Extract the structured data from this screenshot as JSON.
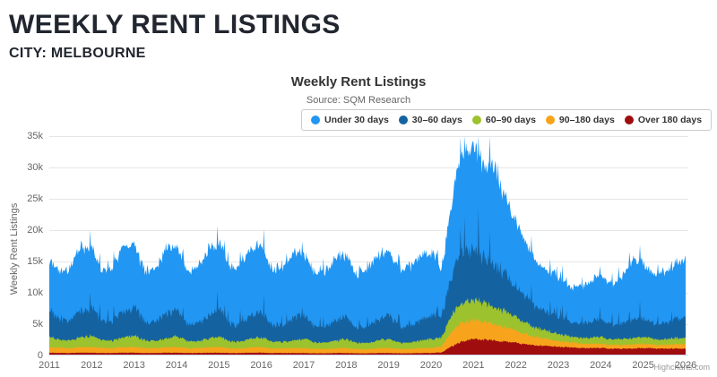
{
  "page": {
    "title": "WEEKLY RENT LISTINGS",
    "subtitle": "CITY: MELBOURNE"
  },
  "chart_data": {
    "type": "area",
    "stacking": "normal",
    "stacking_order": "reversed (Over 180 days at bottom, Under 30 days on top)",
    "title": "Weekly Rent Listings",
    "subtitle": "Source: SQM Research",
    "ylabel": "Weekly Rent Listings",
    "ylim": [
      0,
      35000
    ],
    "grid": "horizontal only",
    "legend_position": "top center, boxed",
    "credits": "Highcharts.com",
    "yticks": [
      {
        "value": 0,
        "label": "0"
      },
      {
        "value": 5000,
        "label": "5k"
      },
      {
        "value": 10000,
        "label": "10k"
      },
      {
        "value": 15000,
        "label": "15k"
      },
      {
        "value": 20000,
        "label": "20k"
      },
      {
        "value": 25000,
        "label": "25k"
      },
      {
        "value": 30000,
        "label": "30k"
      },
      {
        "value": 35000,
        "label": "35k"
      }
    ],
    "xticks": [
      "2011",
      "2012",
      "2013",
      "2014",
      "2015",
      "2016",
      "2017",
      "2018",
      "2019",
      "2020",
      "2021",
      "2022",
      "2023",
      "2024",
      "2025",
      "2026"
    ],
    "x_start": 2011,
    "x_step_years": 0.25,
    "x_end": 2026,
    "resolution_note": "weekly data 2011-2026; values below are quarterly estimates of each band (listings count)",
    "series": [
      {
        "name": "Under 30 days",
        "color": "#2196f3",
        "values": [
          8000,
          7600,
          8400,
          10000,
          9300,
          8000,
          8600,
          10500,
          10000,
          8200,
          8500,
          10300,
          10200,
          8400,
          8800,
          10800,
          10500,
          8900,
          9200,
          10800,
          10400,
          8900,
          9000,
          10600,
          9900,
          8600,
          8800,
          10200,
          9700,
          8400,
          9000,
          10600,
          10400,
          9000,
          9300,
          10400,
          10000,
          7500,
          12000,
          16000,
          16500,
          15000,
          16000,
          12000,
          10300,
          8300,
          7200,
          6600,
          6200,
          5500,
          5900,
          6500,
          6700,
          6500,
          7400,
          9700,
          8800,
          7800,
          8200,
          8800,
          9200
        ]
      },
      {
        "name": "30–60 days",
        "color": "#1562a0",
        "values": [
          4500,
          3000,
          3200,
          4200,
          4500,
          3000,
          3200,
          4000,
          4600,
          3000,
          3000,
          3800,
          4400,
          2800,
          2900,
          3800,
          4300,
          2800,
          2800,
          3600,
          4200,
          2700,
          2700,
          3400,
          3900,
          2500,
          2500,
          3200,
          3700,
          2500,
          2600,
          3300,
          3900,
          2600,
          2700,
          3300,
          3800,
          3500,
          6500,
          8000,
          8000,
          7500,
          7000,
          6000,
          5000,
          4000,
          3400,
          3000,
          2800,
          2400,
          2300,
          2600,
          2800,
          2400,
          2500,
          3000,
          2900,
          2600,
          2700,
          2900,
          3200
        ]
      },
      {
        "name": "60–90 days",
        "color": "#9cc22e",
        "values": [
          1600,
          1200,
          1200,
          1600,
          1800,
          1200,
          1200,
          1500,
          1800,
          1200,
          1100,
          1400,
          1700,
          1100,
          1100,
          1400,
          1700,
          1100,
          1100,
          1400,
          1600,
          1100,
          1000,
          1300,
          1500,
          1000,
          1000,
          1200,
          1400,
          1000,
          1000,
          1200,
          1500,
          1000,
          1000,
          1200,
          1400,
          1500,
          2800,
          3200,
          3200,
          3000,
          2800,
          2500,
          2200,
          1800,
          1500,
          1300,
          1200,
          1000,
          900,
          1000,
          1100,
          900,
          900,
          1000,
          1100,
          900,
          900,
          1000,
          1000
        ]
      },
      {
        "name": "90–180 days",
        "color": "#f7a41c",
        "values": [
          950,
          800,
          800,
          900,
          900,
          800,
          800,
          900,
          900,
          800,
          800,
          850,
          900,
          800,
          800,
          850,
          900,
          800,
          750,
          850,
          900,
          750,
          750,
          800,
          800,
          700,
          700,
          750,
          800,
          700,
          700,
          750,
          800,
          700,
          700,
          750,
          800,
          1000,
          2500,
          3000,
          3000,
          2800,
          2600,
          2300,
          2000,
          1600,
          1300,
          1100,
          900,
          800,
          700,
          700,
          700,
          600,
          600,
          700,
          700,
          600,
          600,
          700,
          700
        ]
      },
      {
        "name": "Over 180 days",
        "color": "#a00d0f",
        "values": [
          450,
          400,
          400,
          450,
          450,
          400,
          400,
          450,
          450,
          400,
          400,
          450,
          450,
          400,
          400,
          450,
          450,
          400,
          400,
          450,
          450,
          400,
          400,
          400,
          400,
          350,
          350,
          400,
          400,
          350,
          350,
          400,
          400,
          350,
          350,
          400,
          400,
          500,
          1500,
          2300,
          2600,
          2500,
          2400,
          2200,
          2000,
          1800,
          1600,
          1500,
          1400,
          1300,
          1200,
          1200,
          1200,
          1100,
          1100,
          1100,
          1200,
          1100,
          1100,
          1100,
          1100
        ]
      }
    ],
    "colors": {
      "grid": "#e6e6e6",
      "axis_line": "#ccd6eb",
      "axis_label": "#666666",
      "title_text": "#333333",
      "credits_text": "#999999"
    }
  }
}
